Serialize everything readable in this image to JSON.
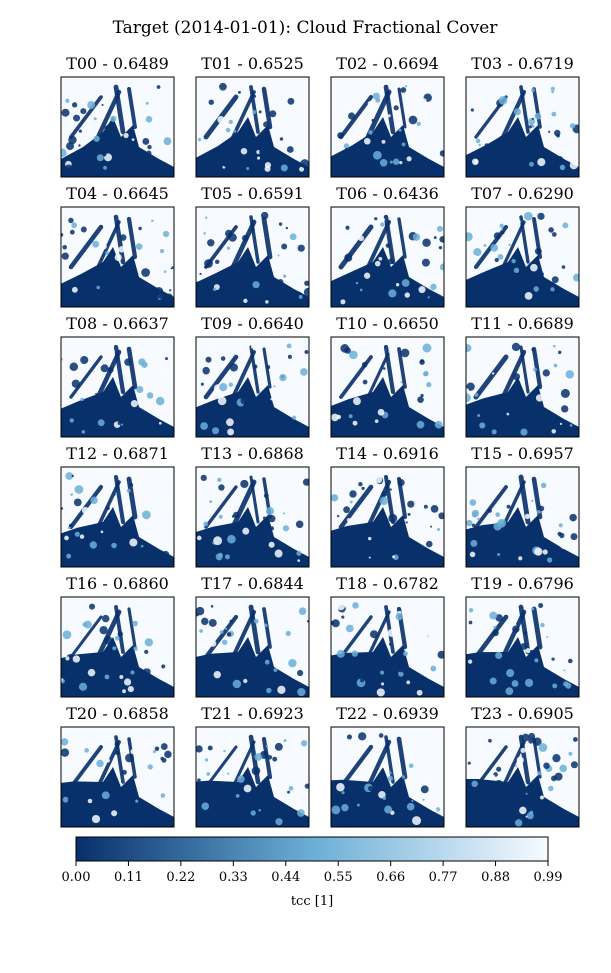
{
  "chart_data": {
    "type": "heatmap",
    "title": "Target (2014-01-01): Cloud Fractional Cover",
    "colormap": "Blues_r",
    "colors": {
      "low": "#08306b",
      "mid": "#6baed6",
      "high": "#f7fbff"
    },
    "panels": [
      {
        "label": "T00",
        "value": 0.6489,
        "title": "T00 - 0.6489"
      },
      {
        "label": "T01",
        "value": 0.6525,
        "title": "T01 - 0.6525"
      },
      {
        "label": "T02",
        "value": 0.6694,
        "title": "T02 - 0.6694"
      },
      {
        "label": "T03",
        "value": 0.6719,
        "title": "T03 - 0.6719"
      },
      {
        "label": "T04",
        "value": 0.6645,
        "title": "T04 - 0.6645"
      },
      {
        "label": "T05",
        "value": 0.6591,
        "title": "T05 - 0.6591"
      },
      {
        "label": "T06",
        "value": 0.6436,
        "title": "T06 - 0.6436"
      },
      {
        "label": "T07",
        "value": 0.629,
        "title": "T07 - 0.6290"
      },
      {
        "label": "T08",
        "value": 0.6637,
        "title": "T08 - 0.6637"
      },
      {
        "label": "T09",
        "value": 0.664,
        "title": "T09 - 0.6640"
      },
      {
        "label": "T10",
        "value": 0.665,
        "title": "T10 - 0.6650"
      },
      {
        "label": "T11",
        "value": 0.6689,
        "title": "T11 - 0.6689"
      },
      {
        "label": "T12",
        "value": 0.6871,
        "title": "T12 - 0.6871"
      },
      {
        "label": "T13",
        "value": 0.6868,
        "title": "T13 - 0.6868"
      },
      {
        "label": "T14",
        "value": 0.6916,
        "title": "T14 - 0.6916"
      },
      {
        "label": "T15",
        "value": 0.6957,
        "title": "T15 - 0.6957"
      },
      {
        "label": "T16",
        "value": 0.686,
        "title": "T16 - 0.6860"
      },
      {
        "label": "T17",
        "value": 0.6844,
        "title": "T17 - 0.6844"
      },
      {
        "label": "T18",
        "value": 0.6782,
        "title": "T18 - 0.6782"
      },
      {
        "label": "T19",
        "value": 0.6796,
        "title": "T19 - 0.6796"
      },
      {
        "label": "T20",
        "value": 0.6858,
        "title": "T20 - 0.6858"
      },
      {
        "label": "T21",
        "value": 0.6923,
        "title": "T21 - 0.6923"
      },
      {
        "label": "T22",
        "value": 0.6939,
        "title": "T22 - 0.6939"
      },
      {
        "label": "T23",
        "value": 0.6905,
        "title": "T23 - 0.6905"
      }
    ],
    "colorbar": {
      "label": "tcc [1]",
      "range": [
        0.0,
        0.99
      ],
      "ticks": [
        "0.00",
        "0.11",
        "0.22",
        "0.33",
        "0.44",
        "0.55",
        "0.66",
        "0.77",
        "0.88",
        "0.99"
      ]
    }
  }
}
